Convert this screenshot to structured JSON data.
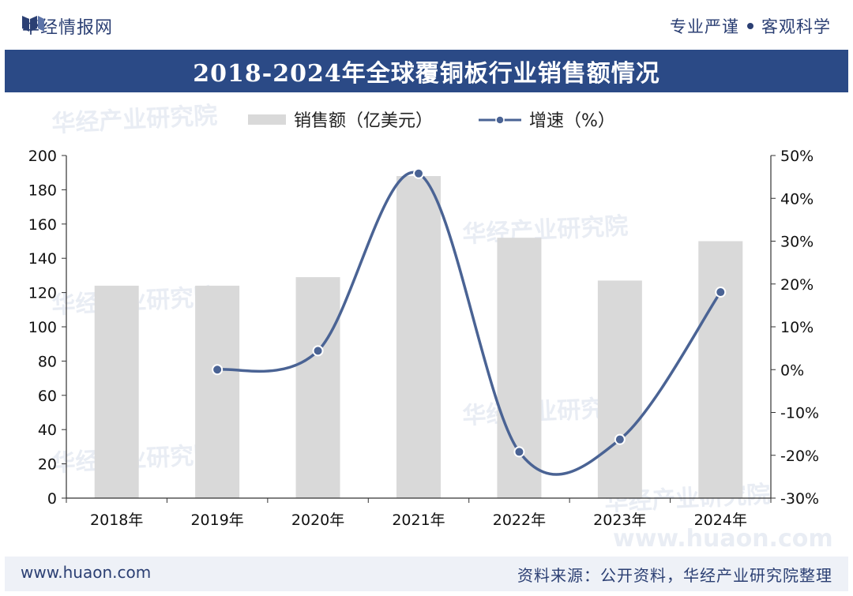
{
  "header": {
    "brand": "华经情报网",
    "slogan_left": "专业严谨",
    "slogan_right": "客观科学"
  },
  "footer": {
    "url": "www.huaon.com",
    "source": "资料来源：公开资料，华经产业研究院整理"
  },
  "watermark": {
    "text": "华经产业研究院",
    "url": "www.huaon.com"
  },
  "colors": {
    "title_bg": "#2b4a86",
    "bar": "#d9d9d9",
    "line": "#4a6394",
    "brand_text": "#2b3f73"
  },
  "chart_data": {
    "type": "bar",
    "title": "2018-2024年全球覆铜板行业销售额情况",
    "categories": [
      "2018年",
      "2019年",
      "2020年",
      "2021年",
      "2022年",
      "2023年",
      "2024年"
    ],
    "series": [
      {
        "name": "销售额（亿美元）",
        "type": "bar",
        "axis": "left",
        "values": [
          124,
          124,
          129,
          188,
          152,
          127,
          150
        ]
      },
      {
        "name": "增速（%）",
        "type": "line",
        "axis": "right",
        "values": [
          null,
          0,
          4.4,
          45.8,
          -19.2,
          -16.3,
          18.1
        ]
      }
    ],
    "y_left": {
      "min": 0,
      "max": 200,
      "ticks": [
        "0",
        "20",
        "40",
        "60",
        "80",
        "100",
        "120",
        "140",
        "160",
        "180",
        "200"
      ]
    },
    "y_right": {
      "min": -30,
      "max": 50,
      "ticks": [
        "-30%",
        "-20%",
        "-10%",
        "0%",
        "10%",
        "20%",
        "30%",
        "40%",
        "50%"
      ]
    },
    "grid": false,
    "legend_position": "top-left"
  }
}
